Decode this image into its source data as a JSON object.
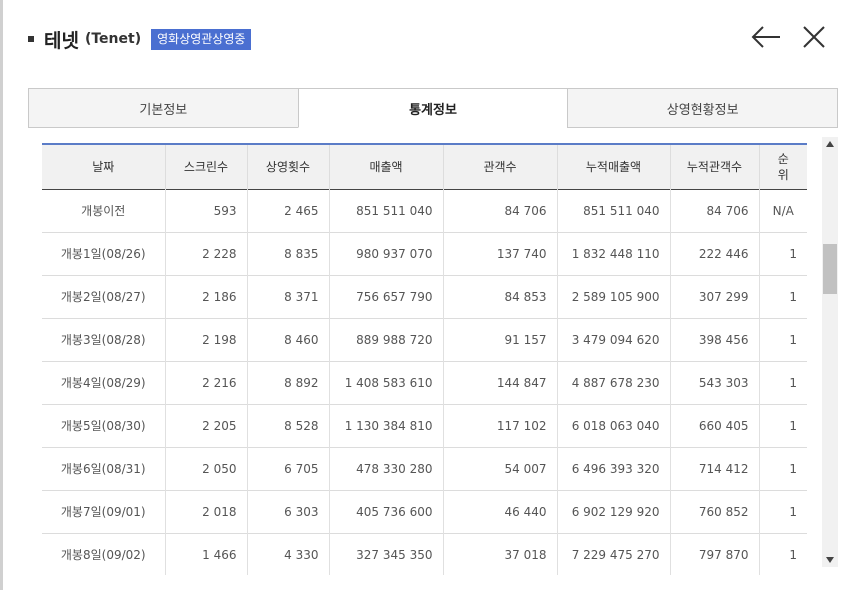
{
  "header": {
    "title": "테넷",
    "title_en": "(Tenet)",
    "badge": "영화상영관상영중"
  },
  "icons": {
    "back": "arrow-left-icon",
    "close": "close-icon"
  },
  "tabs": [
    {
      "label": "기본정보",
      "active": false
    },
    {
      "label": "통계정보",
      "active": true
    },
    {
      "label": "상영현황정보",
      "active": false
    }
  ],
  "table": {
    "columns": [
      "날짜",
      "스크린수",
      "상영횟수",
      "매출액",
      "관객수",
      "누적매출액",
      "누적관객수",
      "순",
      "위"
    ],
    "rows": [
      {
        "date": "개봉이전",
        "screens": "593",
        "shows": "2 465",
        "sales": "851 511 040",
        "audience": "84 706",
        "cum_sales": "851 511 040",
        "cum_audience": "84 706",
        "rank": "N/A"
      },
      {
        "date": "개봉1일(08/26)",
        "screens": "2 228",
        "shows": "8 835",
        "sales": "980 937 070",
        "audience": "137 740",
        "cum_sales": "1 832 448 110",
        "cum_audience": "222 446",
        "rank": "1"
      },
      {
        "date": "개봉2일(08/27)",
        "screens": "2 186",
        "shows": "8 371",
        "sales": "756 657 790",
        "audience": "84 853",
        "cum_sales": "2 589 105 900",
        "cum_audience": "307 299",
        "rank": "1"
      },
      {
        "date": "개봉3일(08/28)",
        "screens": "2 198",
        "shows": "8 460",
        "sales": "889 988 720",
        "audience": "91 157",
        "cum_sales": "3 479 094 620",
        "cum_audience": "398 456",
        "rank": "1"
      },
      {
        "date": "개봉4일(08/29)",
        "screens": "2 216",
        "shows": "8 892",
        "sales": "1 408 583 610",
        "audience": "144 847",
        "cum_sales": "4 887 678 230",
        "cum_audience": "543 303",
        "rank": "1"
      },
      {
        "date": "개봉5일(08/30)",
        "screens": "2 205",
        "shows": "8 528",
        "sales": "1 130 384 810",
        "audience": "117 102",
        "cum_sales": "6 018 063 040",
        "cum_audience": "660 405",
        "rank": "1"
      },
      {
        "date": "개봉6일(08/31)",
        "screens": "2 050",
        "shows": "6 705",
        "sales": "478 330 280",
        "audience": "54 007",
        "cum_sales": "6 496 393 320",
        "cum_audience": "714 412",
        "rank": "1"
      },
      {
        "date": "개봉7일(09/01)",
        "screens": "2 018",
        "shows": "6 303",
        "sales": "405 736 600",
        "audience": "46 440",
        "cum_sales": "6 902 129 920",
        "cum_audience": "760 852",
        "rank": "1"
      },
      {
        "date": "개봉8일(09/02)",
        "screens": "1 466",
        "shows": "4 330",
        "sales": "327 345 350",
        "audience": "37 018",
        "cum_sales": "7 229 475 270",
        "cum_audience": "797 870",
        "rank": "1"
      }
    ]
  },
  "colors": {
    "badge": "#4a6fd1",
    "table_header_top_border": "#5b7cc7"
  }
}
